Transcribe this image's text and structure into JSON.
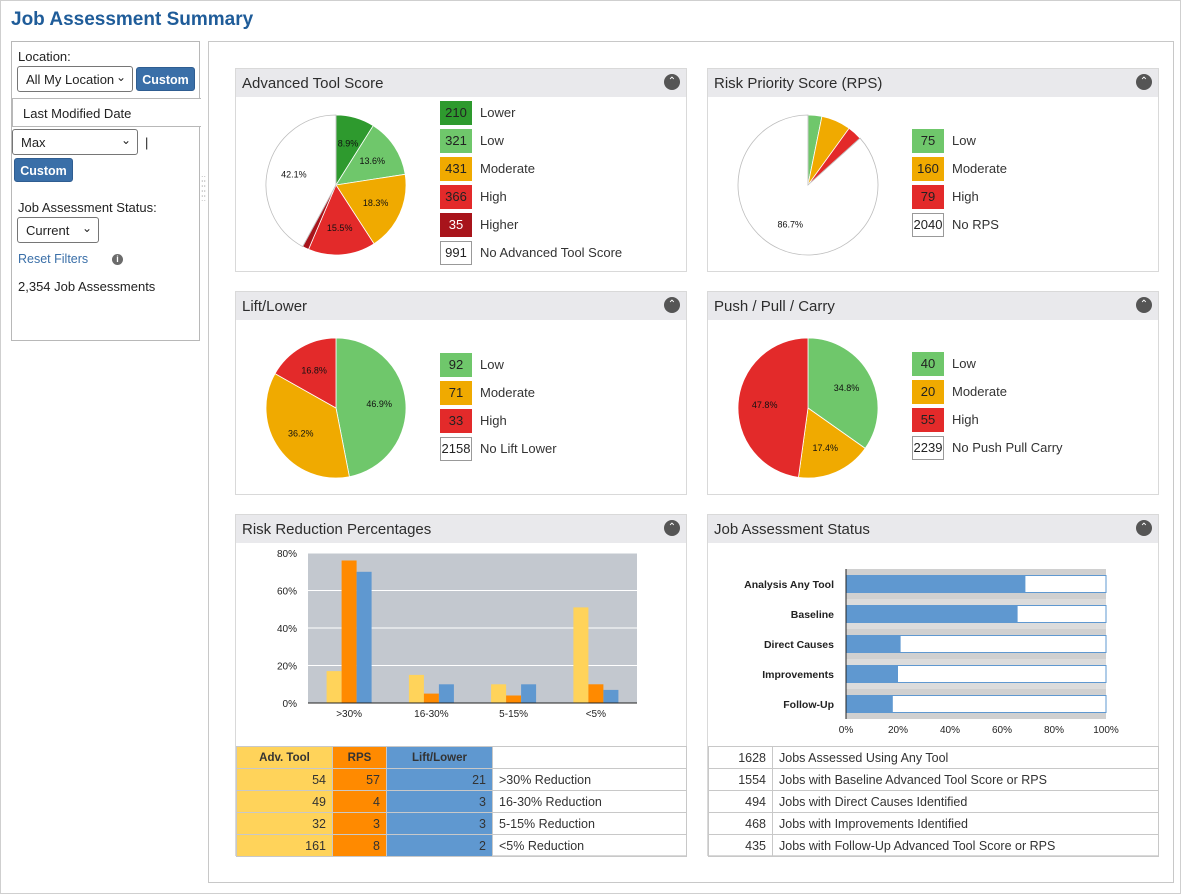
{
  "page": {
    "title": "Job Assessment Summary"
  },
  "sidebar": {
    "location_label": "Location:",
    "location_value": "All My Location",
    "custom_label": "Custom",
    "date_label": "Last Modified Date",
    "date_value": "Max",
    "date_sep": "|",
    "status_label": "Job Assessment Status:",
    "status_value": "Current",
    "reset_label": "Reset Filters",
    "info_glyph": "i",
    "count_text": "2,354 Job Assessments"
  },
  "panels": {
    "advanced": {
      "title": "Advanced Tool Score",
      "legend": [
        {
          "value": "210",
          "label": "Lower",
          "color": "#2e9a2e"
        },
        {
          "value": "321",
          "label": "Low",
          "color": "#6fc76b"
        },
        {
          "value": "431",
          "label": "Moderate",
          "color": "#f0aa00"
        },
        {
          "value": "366",
          "label": "High",
          "color": "#e32a2a"
        },
        {
          "value": "35",
          "label": "Higher",
          "color": "#a8141b"
        },
        {
          "value": "991",
          "label": "No Advanced Tool Score",
          "color": "#ffffff"
        }
      ],
      "pie_labels": [
        "8.9%",
        "13.6%",
        "18.3%",
        "15.5%",
        "42.1%"
      ]
    },
    "rps": {
      "title": "Risk Priority Score (RPS)",
      "legend": [
        {
          "value": "75",
          "label": "Low",
          "color": "#6fc76b"
        },
        {
          "value": "160",
          "label": "Moderate",
          "color": "#f0aa00"
        },
        {
          "value": "79",
          "label": "High",
          "color": "#e32a2a"
        },
        {
          "value": "2040",
          "label": "No RPS",
          "color": "#ffffff"
        }
      ],
      "pie_labels": [
        "86.7%"
      ]
    },
    "lift": {
      "title": "Lift/Lower",
      "legend": [
        {
          "value": "92",
          "label": "Low",
          "color": "#6fc76b"
        },
        {
          "value": "71",
          "label": "Moderate",
          "color": "#f0aa00"
        },
        {
          "value": "33",
          "label": "High",
          "color": "#e32a2a"
        },
        {
          "value": "2158",
          "label": "No Lift Lower",
          "color": "#ffffff"
        }
      ],
      "pie_labels": [
        "46.9%",
        "36.2%",
        "16.8%"
      ]
    },
    "push": {
      "title": "Push / Pull / Carry",
      "legend": [
        {
          "value": "40",
          "label": "Low",
          "color": "#6fc76b"
        },
        {
          "value": "20",
          "label": "Moderate",
          "color": "#f0aa00"
        },
        {
          "value": "55",
          "label": "High",
          "color": "#e32a2a"
        },
        {
          "value": "2239",
          "label": "No Push Pull Carry",
          "color": "#ffffff"
        }
      ],
      "pie_labels": [
        "34.8%",
        "17.4%",
        "47.8%"
      ]
    },
    "risk": {
      "title": "Risk Reduction Percentages",
      "table_headers": [
        "Adv. Tool",
        "RPS",
        "Lift/Lower"
      ],
      "rows": [
        {
          "adv": "54",
          "rps": "57",
          "lift": "21",
          "label": ">30% Reduction"
        },
        {
          "adv": "49",
          "rps": "4",
          "lift": "3",
          "label": "16-30% Reduction"
        },
        {
          "adv": "32",
          "rps": "3",
          "lift": "3",
          "label": "5-15% Reduction"
        },
        {
          "adv": "161",
          "rps": "8",
          "lift": "2",
          "label": "<5% Reduction"
        }
      ]
    },
    "status": {
      "title": "Job Assessment Status",
      "rows": [
        {
          "value": "1628",
          "label": "Jobs Assessed Using Any Tool"
        },
        {
          "value": "1554",
          "label": "Jobs with Baseline Advanced Tool Score or RPS"
        },
        {
          "value": "494",
          "label": "Jobs with Direct Causes Identified"
        },
        {
          "value": "468",
          "label": "Jobs with Improvements Identified"
        },
        {
          "value": "435",
          "label": "Jobs with Follow-Up Advanced Tool Score or RPS"
        }
      ]
    }
  },
  "colors": {
    "title_blue": "#1f5c99",
    "button_blue": "#3a6fa8",
    "adv_yellow": "#ffd35a",
    "rps_orange": "#ff8a00",
    "lift_blue": "#5f98d0",
    "chart_bg": "#c3c8cf"
  },
  "chart_data": [
    {
      "type": "pie",
      "title": "Advanced Tool Score",
      "categories": [
        "Lower",
        "Low",
        "Moderate",
        "High",
        "Higher",
        "No Advanced Tool Score"
      ],
      "values": [
        210,
        321,
        431,
        366,
        35,
        991
      ]
    },
    {
      "type": "pie",
      "title": "Risk Priority Score (RPS)",
      "categories": [
        "Low",
        "Moderate",
        "High",
        "No RPS"
      ],
      "values": [
        75,
        160,
        79,
        2040
      ]
    },
    {
      "type": "pie",
      "title": "Lift/Lower",
      "categories": [
        "Low",
        "Moderate",
        "High"
      ],
      "values": [
        92,
        71,
        33
      ]
    },
    {
      "type": "pie",
      "title": "Push / Pull / Carry",
      "categories": [
        "Low",
        "Moderate",
        "High"
      ],
      "values": [
        40,
        20,
        55
      ]
    },
    {
      "type": "bar",
      "title": "Risk Reduction Percentages",
      "categories": [
        ">30%",
        "16-30%",
        "5-15%",
        "<5%"
      ],
      "series": [
        {
          "name": "Adv. Tool",
          "values": [
            17,
            15,
            10,
            51
          ]
        },
        {
          "name": "RPS",
          "values": [
            76,
            5,
            4,
            10
          ]
        },
        {
          "name": "Lift/Lower",
          "values": [
            70,
            10,
            10,
            7
          ]
        }
      ],
      "yticks": [
        "0%",
        "20%",
        "40%",
        "60%",
        "80%"
      ],
      "ylim": [
        0,
        80
      ]
    },
    {
      "type": "bar",
      "orientation": "horizontal",
      "title": "Job Assessment Status",
      "categories": [
        "Analysis Any Tool",
        "Baseline",
        "Direct Causes",
        "Improvements",
        "Follow-Up"
      ],
      "values": [
        69,
        66,
        21,
        20,
        18
      ],
      "xticks": [
        "0%",
        "20%",
        "40%",
        "60%",
        "80%",
        "100%"
      ],
      "xlim": [
        0,
        100
      ]
    }
  ]
}
